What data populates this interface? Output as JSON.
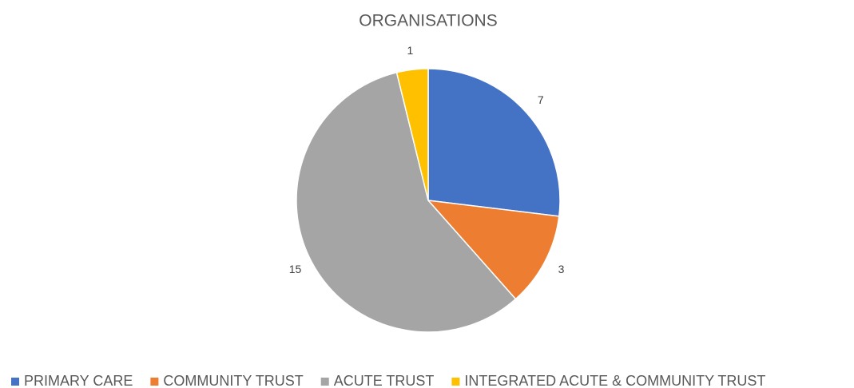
{
  "chart_data": {
    "type": "pie",
    "title": "ORGANISATIONS",
    "categories": [
      "PRIMARY CARE",
      "COMMUNITY TRUST",
      "ACUTE TRUST",
      "INTEGRATED ACUTE & COMMUNITY TRUST"
    ],
    "values": [
      7,
      3,
      15,
      1
    ],
    "colors": [
      "#4472c4",
      "#ed7d31",
      "#a5a5a5",
      "#ffc000"
    ],
    "legend": "bottom"
  }
}
